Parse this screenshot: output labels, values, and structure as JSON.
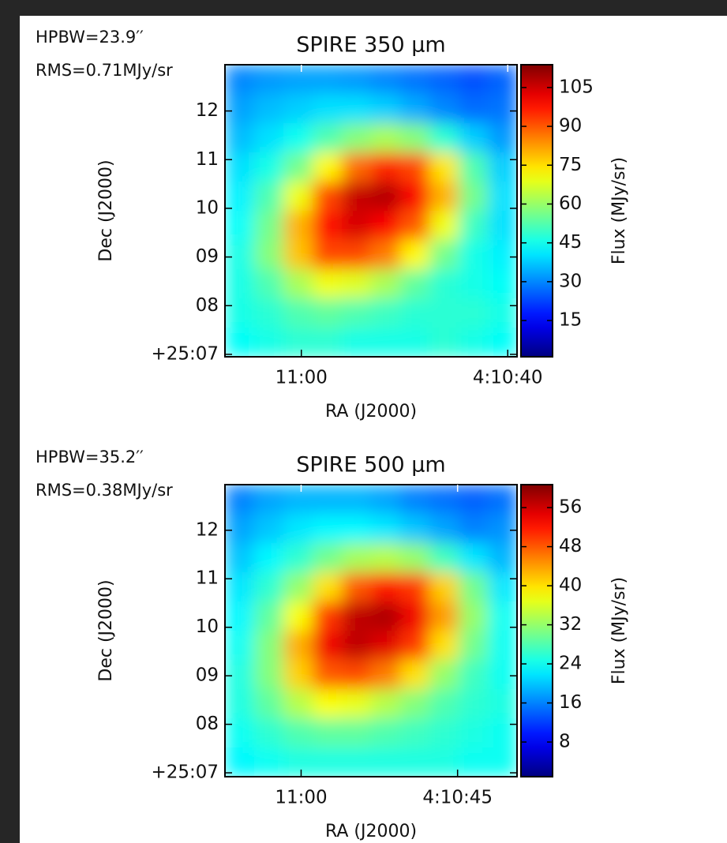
{
  "chart_data": [
    {
      "type": "heatmap",
      "title": "SPIRE 350 μm",
      "annotations": [
        "HPBW=23.9′′",
        "RMS=0.71MJy/sr"
      ],
      "xlabel": "RA (J2000)",
      "ylabel": "Dec (J2000)",
      "xlim": [
        67.4,
        39.1
      ],
      "xticks": [
        {
          "value": 60,
          "label": "11:00"
        },
        {
          "value": 40,
          "label": "4:10:40"
        }
      ],
      "ylim": [
        6.95,
        12.95
      ],
      "yticks": [
        {
          "value": 7,
          "label": "+25:07"
        },
        {
          "value": 8,
          "label": "08"
        },
        {
          "value": 9,
          "label": "09"
        },
        10,
        11,
        12
      ],
      "z": [
        [
          30,
          32,
          33,
          33,
          32,
          30,
          28,
          26,
          24,
          26
        ],
        [
          33,
          36,
          38,
          40,
          40,
          38,
          34,
          30,
          27,
          28
        ],
        [
          36,
          40,
          45,
          52,
          58,
          62,
          58,
          48,
          38,
          32
        ],
        [
          40,
          46,
          56,
          72,
          88,
          96,
          92,
          74,
          52,
          38
        ],
        [
          42,
          52,
          70,
          92,
          106,
          108,
          100,
          80,
          56,
          40
        ],
        [
          44,
          56,
          80,
          98,
          104,
          100,
          90,
          70,
          50,
          40
        ],
        [
          46,
          58,
          78,
          92,
          92,
          86,
          72,
          56,
          46,
          42
        ],
        [
          46,
          52,
          62,
          70,
          68,
          62,
          54,
          48,
          46,
          44
        ],
        [
          46,
          48,
          52,
          54,
          52,
          50,
          48,
          48,
          48,
          46
        ],
        [
          44,
          46,
          48,
          48,
          46,
          46,
          46,
          48,
          46,
          44
        ]
      ],
      "colormap": "jet",
      "colorbar_label": "Flux (MJy/sr)",
      "clim": [
        1,
        113.8
      ],
      "cticks": [
        15,
        30,
        45,
        60,
        75,
        90,
        105
      ]
    },
    {
      "type": "heatmap",
      "title": "SPIRE 500 μm",
      "annotations": [
        "HPBW=35.2′′",
        "RMS=0.38MJy/sr"
      ],
      "xlabel": "RA (J2000)",
      "ylabel": "Dec (J2000)",
      "xlim": [
        67.3,
        39.3
      ],
      "xticks": [
        {
          "value": 60,
          "label": "11:00"
        },
        {
          "value": 45,
          "label": "4:10:45"
        }
      ],
      "ylim": [
        6.92,
        12.94
      ],
      "yticks": [
        {
          "value": 7,
          "label": "+25:07"
        },
        {
          "value": 8,
          "label": "08"
        },
        {
          "value": 9,
          "label": "09"
        },
        10,
        11,
        12
      ],
      "z": [
        [
          16,
          18,
          19,
          19,
          19,
          18,
          16,
          15,
          14,
          15
        ],
        [
          18,
          20,
          22,
          23,
          23,
          22,
          20,
          18,
          16,
          17
        ],
        [
          20,
          23,
          26,
          30,
          33,
          34,
          32,
          27,
          22,
          19
        ],
        [
          22,
          26,
          32,
          40,
          48,
          52,
          50,
          41,
          30,
          22
        ],
        [
          23,
          29,
          38,
          50,
          57,
          58,
          54,
          44,
          32,
          24
        ],
        [
          24,
          31,
          43,
          54,
          57,
          55,
          50,
          40,
          30,
          24
        ],
        [
          25,
          31,
          41,
          48,
          49,
          46,
          40,
          32,
          27,
          24
        ],
        [
          25,
          29,
          34,
          38,
          37,
          34,
          31,
          28,
          26,
          25
        ],
        [
          24,
          26,
          28,
          29,
          29,
          28,
          27,
          26,
          25,
          24
        ],
        [
          23,
          24,
          25,
          25,
          25,
          25,
          25,
          25,
          24,
          24
        ]
      ],
      "colormap": "jet",
      "colorbar_label": "Flux (MJy/sr)",
      "clim": [
        0.9,
        60.7
      ],
      "cticks": [
        8,
        16,
        24,
        32,
        40,
        48,
        56
      ]
    }
  ]
}
